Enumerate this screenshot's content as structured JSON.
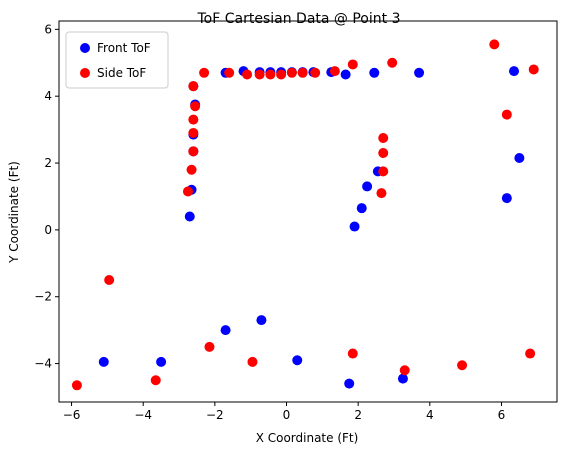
{
  "chart_data": {
    "type": "scatter",
    "title": "ToF Cartesian Data @ Point 3",
    "xlabel": "X Coordinate (Ft)",
    "ylabel": "Y Coordinate (Ft)",
    "xlim": [
      -6.35,
      7.55
    ],
    "ylim": [
      -5.15,
      6.25
    ],
    "xticks": [
      -6,
      -4,
      -2,
      0,
      2,
      4,
      6
    ],
    "yticks": [
      -4,
      -2,
      0,
      2,
      4,
      6
    ],
    "grid": false,
    "legend_position": "top-left",
    "series": [
      {
        "name": "Front ToF",
        "color": "#0000ff",
        "points": [
          [
            -5.1,
            -3.95
          ],
          [
            -3.5,
            -3.95
          ],
          [
            -1.7,
            -3.0
          ],
          [
            -0.7,
            -2.7
          ],
          [
            0.3,
            -3.9
          ],
          [
            1.75,
            -4.6
          ],
          [
            3.25,
            -4.45
          ],
          [
            -2.7,
            0.4
          ],
          [
            -2.65,
            1.2
          ],
          [
            -2.6,
            2.35
          ],
          [
            -2.6,
            2.85
          ],
          [
            -2.55,
            3.75
          ],
          [
            -2.6,
            4.3
          ],
          [
            -1.7,
            4.7
          ],
          [
            -1.2,
            4.75
          ],
          [
            -0.75,
            4.72
          ],
          [
            -0.45,
            4.72
          ],
          [
            -0.15,
            4.72
          ],
          [
            0.15,
            4.72
          ],
          [
            0.45,
            4.72
          ],
          [
            0.75,
            4.72
          ],
          [
            1.25,
            4.72
          ],
          [
            1.65,
            4.65
          ],
          [
            2.45,
            4.7
          ],
          [
            3.7,
            4.7
          ],
          [
            6.35,
            4.75
          ],
          [
            6.5,
            2.15
          ],
          [
            6.15,
            0.95
          ],
          [
            1.9,
            0.1
          ],
          [
            2.1,
            0.65
          ],
          [
            2.25,
            1.3
          ],
          [
            2.55,
            1.75
          ]
        ]
      },
      {
        "name": "Side ToF",
        "color": "#ff0000",
        "points": [
          [
            -5.85,
            -4.65
          ],
          [
            -4.95,
            -1.5
          ],
          [
            -3.65,
            -4.5
          ],
          [
            -2.15,
            -3.5
          ],
          [
            -0.95,
            -3.95
          ],
          [
            1.85,
            -3.7
          ],
          [
            3.3,
            -4.2
          ],
          [
            4.9,
            -4.05
          ],
          [
            6.8,
            -3.7
          ],
          [
            -2.75,
            1.15
          ],
          [
            -2.65,
            1.8
          ],
          [
            -2.6,
            2.35
          ],
          [
            -2.6,
            2.9
          ],
          [
            -2.6,
            3.3
          ],
          [
            -2.55,
            3.7
          ],
          [
            -2.6,
            4.3
          ],
          [
            -2.3,
            4.7
          ],
          [
            -1.6,
            4.7
          ],
          [
            -1.1,
            4.65
          ],
          [
            -0.75,
            4.65
          ],
          [
            -0.45,
            4.65
          ],
          [
            -0.15,
            4.65
          ],
          [
            0.15,
            4.7
          ],
          [
            0.45,
            4.7
          ],
          [
            0.8,
            4.7
          ],
          [
            1.35,
            4.75
          ],
          [
            1.85,
            4.95
          ],
          [
            2.95,
            5.0
          ],
          [
            5.8,
            5.55
          ],
          [
            6.15,
            3.45
          ],
          [
            6.9,
            4.8
          ],
          [
            2.65,
            1.1
          ],
          [
            2.7,
            1.75
          ],
          [
            2.7,
            2.3
          ],
          [
            2.7,
            2.75
          ]
        ]
      }
    ]
  }
}
